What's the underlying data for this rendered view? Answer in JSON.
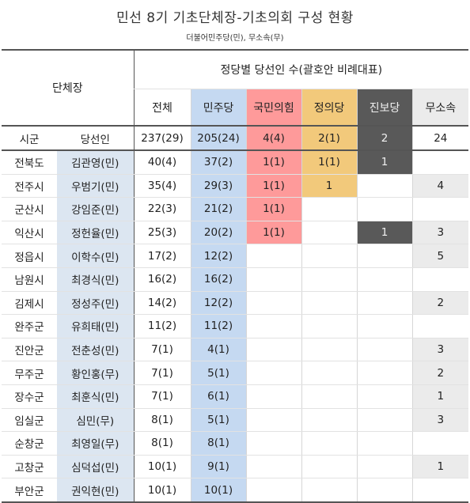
{
  "title": "민선 8기 기초단체장-기초의회 구성 현황",
  "subtitle": "더불어민주당(민), 무소속(무)",
  "header": {
    "head_label": "단체장",
    "party_group_label": "정당별 당선인 수(괄호안 비례대표)",
    "columns": [
      "전체",
      "민주당",
      "국민의힘",
      "정의당",
      "진보당",
      "무소속"
    ],
    "sub_left": "시군",
    "sub_cand": "당선인"
  },
  "totals": [
    "237(29)",
    "205(24)",
    "4(4)",
    "2(1)",
    "2",
    "24"
  ],
  "colors": {
    "minjoo": "#c5d9f1",
    "ppp": "#fe9a9a",
    "justice": "#f2c97b",
    "progressive": "#595959",
    "independent": "#ebebeb",
    "candidate": "#dce6f1"
  },
  "rows": [
    {
      "region": "전북도",
      "winner": "김관영(민)",
      "total": "40(4)",
      "minjoo": "37(2)",
      "ppp": "1(1)",
      "justice": "1(1)",
      "progressive": "1",
      "independent": ""
    },
    {
      "region": "전주시",
      "winner": "우범기(민)",
      "total": "35(4)",
      "minjoo": "29(3)",
      "ppp": "1(1)",
      "justice": "1",
      "progressive": "",
      "independent": "4"
    },
    {
      "region": "군산시",
      "winner": "강임준(민)",
      "total": "22(3)",
      "minjoo": "21(2)",
      "ppp": "1(1)",
      "justice": "",
      "progressive": "",
      "independent": ""
    },
    {
      "region": "익산시",
      "winner": "정헌율(민)",
      "total": "25(3)",
      "minjoo": "20(2)",
      "ppp": "1(1)",
      "justice": "",
      "progressive": "1",
      "independent": "3"
    },
    {
      "region": "정읍시",
      "winner": "이학수(민)",
      "total": "17(2)",
      "minjoo": "12(2)",
      "ppp": "",
      "justice": "",
      "progressive": "",
      "independent": "5"
    },
    {
      "region": "남원시",
      "winner": "최경식(민)",
      "total": "16(2)",
      "minjoo": "16(2)",
      "ppp": "",
      "justice": "",
      "progressive": "",
      "independent": ""
    },
    {
      "region": "김제시",
      "winner": "정성주(민)",
      "total": "14(2)",
      "minjoo": "12(2)",
      "ppp": "",
      "justice": "",
      "progressive": "",
      "independent": "2"
    },
    {
      "region": "완주군",
      "winner": "유희태(민)",
      "total": "11(2)",
      "minjoo": "11(2)",
      "ppp": "",
      "justice": "",
      "progressive": "",
      "independent": ""
    },
    {
      "region": "진안군",
      "winner": "전춘성(민)",
      "total": "7(1)",
      "minjoo": "4(1)",
      "ppp": "",
      "justice": "",
      "progressive": "",
      "independent": "3"
    },
    {
      "region": "무주군",
      "winner": "황인홍(무)",
      "total": "7(1)",
      "minjoo": "5(1)",
      "ppp": "",
      "justice": "",
      "progressive": "",
      "independent": "2"
    },
    {
      "region": "장수군",
      "winner": "최훈식(민)",
      "total": "7(1)",
      "minjoo": "6(1)",
      "ppp": "",
      "justice": "",
      "progressive": "",
      "independent": "1"
    },
    {
      "region": "임실군",
      "winner": "심민(무)",
      "total": "8(1)",
      "minjoo": "5(1)",
      "ppp": "",
      "justice": "",
      "progressive": "",
      "independent": "3"
    },
    {
      "region": "순창군",
      "winner": "최영일(무)",
      "total": "8(1)",
      "minjoo": "8(1)",
      "ppp": "",
      "justice": "",
      "progressive": "",
      "independent": ""
    },
    {
      "region": "고창군",
      "winner": "심덕섭(민)",
      "total": "10(1)",
      "minjoo": "9(1)",
      "ppp": "",
      "justice": "",
      "progressive": "",
      "independent": "1"
    },
    {
      "region": "부안군",
      "winner": "권익현(민)",
      "total": "10(1)",
      "minjoo": "10(1)",
      "ppp": "",
      "justice": "",
      "progressive": "",
      "independent": ""
    }
  ]
}
